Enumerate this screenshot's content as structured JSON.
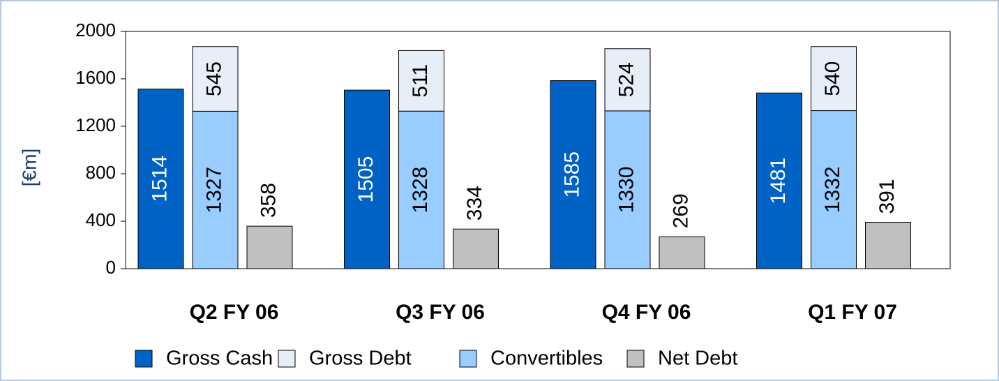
{
  "chart_data": {
    "type": "bar",
    "y_label": "[€m]",
    "categories": [
      "Q2 FY 06",
      "Q3 FY 06",
      "Q4 FY 06",
      "Q1 FY 07"
    ],
    "series": [
      {
        "name": "Gross Cash",
        "color": "#0062c4",
        "values": [
          1514,
          1505,
          1585,
          1481
        ]
      },
      {
        "name": "Gross Debt",
        "color": "#e6eef8",
        "values": [
          545,
          511,
          524,
          540
        ],
        "stacked": true
      },
      {
        "name": "Convertibles",
        "color": "#99ccff",
        "values": [
          1327,
          1328,
          1330,
          1332
        ],
        "stacked": true
      },
      {
        "name": "Net Debt",
        "color": "#c0c0c0",
        "values": [
          358,
          334,
          269,
          391
        ]
      }
    ],
    "ylim": [
      0,
      2000
    ],
    "yticks": [
      0,
      400,
      800,
      1200,
      1600,
      2000
    ],
    "legend": "bottom"
  }
}
